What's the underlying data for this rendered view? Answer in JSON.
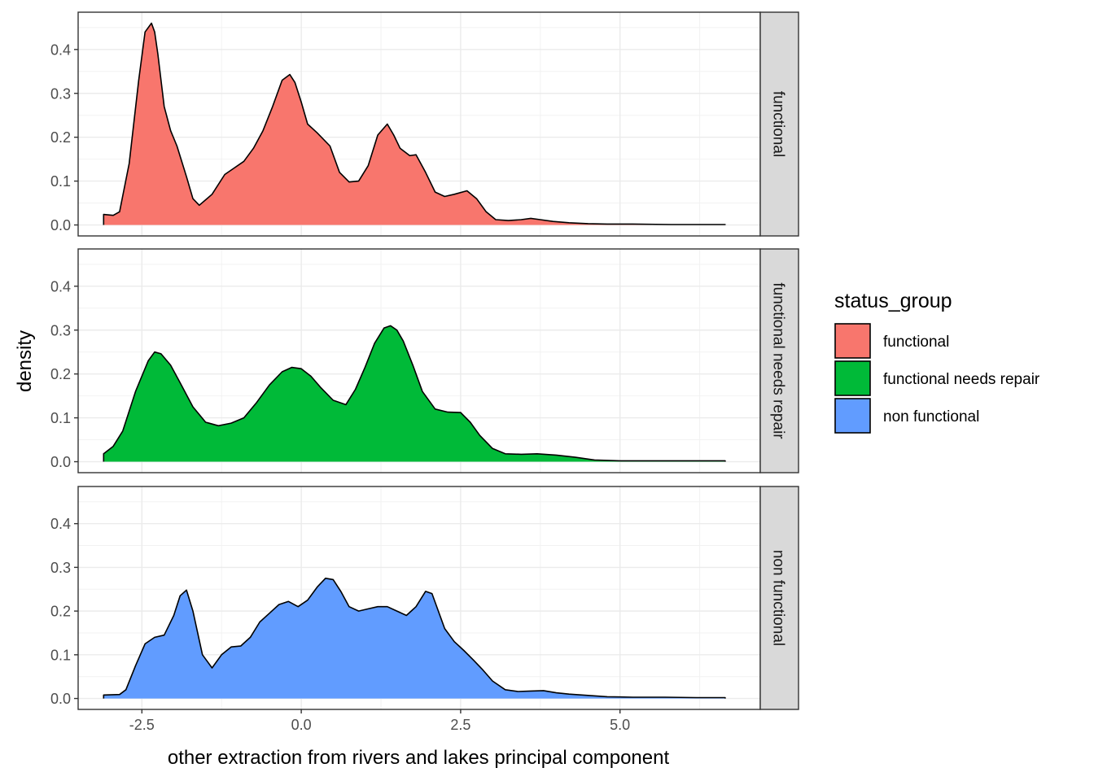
{
  "chart_data": {
    "type": "area",
    "facet_by": "status_group",
    "xlabel": "other extraction from rivers and lakes principal component",
    "ylabel": "density",
    "xlim": [
      -3.5,
      7.2
    ],
    "ylim": [
      -0.025,
      0.485
    ],
    "x_ticks": [
      -2.5,
      0.0,
      2.5,
      5.0
    ],
    "x_tick_labels": [
      "-2.5",
      "0.0",
      "2.5",
      "5.0"
    ],
    "y_ticks": [
      0.0,
      0.1,
      0.2,
      0.3,
      0.4
    ],
    "y_tick_labels": [
      "0.0",
      "0.1",
      "0.2",
      "0.3",
      "0.4"
    ],
    "grid": true,
    "legend": {
      "title": "status_group",
      "position": "right",
      "entries": [
        "functional",
        "functional needs repair",
        "non functional"
      ]
    },
    "series": [
      {
        "name": "functional",
        "color": "#F8766D",
        "x": [
          -3.1,
          -2.95,
          -2.85,
          -2.7,
          -2.55,
          -2.45,
          -2.35,
          -2.3,
          -2.25,
          -2.15,
          -2.05,
          -1.95,
          -1.8,
          -1.7,
          -1.6,
          -1.4,
          -1.2,
          -1.05,
          -0.9,
          -0.75,
          -0.6,
          -0.45,
          -0.3,
          -0.18,
          -0.1,
          0.0,
          0.1,
          0.25,
          0.45,
          0.6,
          0.75,
          0.9,
          1.05,
          1.2,
          1.35,
          1.45,
          1.55,
          1.7,
          1.8,
          1.95,
          2.1,
          2.25,
          2.4,
          2.6,
          2.75,
          2.9,
          3.05,
          3.25,
          3.45,
          3.6,
          3.75,
          3.95,
          4.2,
          4.5,
          4.8,
          5.2,
          5.8,
          6.3,
          6.65
        ],
        "y": [
          0.024,
          0.022,
          0.03,
          0.14,
          0.33,
          0.44,
          0.46,
          0.44,
          0.39,
          0.27,
          0.215,
          0.18,
          0.11,
          0.06,
          0.045,
          0.07,
          0.115,
          0.13,
          0.145,
          0.175,
          0.215,
          0.27,
          0.33,
          0.343,
          0.325,
          0.28,
          0.23,
          0.21,
          0.18,
          0.12,
          0.098,
          0.1,
          0.135,
          0.205,
          0.23,
          0.205,
          0.175,
          0.158,
          0.16,
          0.12,
          0.075,
          0.065,
          0.07,
          0.078,
          0.06,
          0.03,
          0.012,
          0.01,
          0.012,
          0.015,
          0.012,
          0.008,
          0.005,
          0.003,
          0.002,
          0.002,
          0.001,
          0.001,
          0.001
        ]
      },
      {
        "name": "functional needs repair",
        "color": "#00BA38",
        "x": [
          -3.1,
          -2.95,
          -2.8,
          -2.6,
          -2.4,
          -2.3,
          -2.2,
          -2.05,
          -1.9,
          -1.7,
          -1.5,
          -1.3,
          -1.1,
          -0.9,
          -0.7,
          -0.5,
          -0.3,
          -0.15,
          0.0,
          0.15,
          0.3,
          0.5,
          0.7,
          0.85,
          1.0,
          1.15,
          1.3,
          1.4,
          1.5,
          1.6,
          1.75,
          1.9,
          2.1,
          2.3,
          2.5,
          2.65,
          2.8,
          3.0,
          3.2,
          3.45,
          3.7,
          4.0,
          4.3,
          4.6,
          5.0,
          5.5,
          6.0,
          6.65
        ],
        "y": [
          0.018,
          0.035,
          0.07,
          0.16,
          0.23,
          0.25,
          0.246,
          0.22,
          0.18,
          0.125,
          0.09,
          0.082,
          0.088,
          0.1,
          0.135,
          0.175,
          0.205,
          0.215,
          0.212,
          0.195,
          0.17,
          0.14,
          0.13,
          0.165,
          0.215,
          0.27,
          0.305,
          0.31,
          0.3,
          0.275,
          0.22,
          0.16,
          0.12,
          0.113,
          0.112,
          0.09,
          0.06,
          0.03,
          0.018,
          0.017,
          0.018,
          0.015,
          0.01,
          0.004,
          0.002,
          0.002,
          0.002,
          0.002
        ]
      },
      {
        "name": "non functional",
        "color": "#619CFF",
        "x": [
          -3.1,
          -2.85,
          -2.75,
          -2.6,
          -2.45,
          -2.3,
          -2.15,
          -2.0,
          -1.9,
          -1.8,
          -1.7,
          -1.55,
          -1.4,
          -1.25,
          -1.1,
          -0.95,
          -0.8,
          -0.65,
          -0.5,
          -0.35,
          -0.2,
          -0.05,
          0.1,
          0.25,
          0.38,
          0.5,
          0.62,
          0.75,
          0.9,
          1.05,
          1.2,
          1.35,
          1.5,
          1.65,
          1.8,
          1.95,
          2.05,
          2.15,
          2.25,
          2.4,
          2.55,
          2.7,
          2.85,
          3.0,
          3.2,
          3.4,
          3.6,
          3.8,
          4.0,
          4.2,
          4.5,
          4.8,
          5.2,
          5.7,
          6.2,
          6.65
        ],
        "y": [
          0.008,
          0.009,
          0.02,
          0.075,
          0.125,
          0.14,
          0.145,
          0.19,
          0.235,
          0.248,
          0.2,
          0.1,
          0.07,
          0.1,
          0.118,
          0.12,
          0.14,
          0.175,
          0.195,
          0.215,
          0.222,
          0.21,
          0.225,
          0.255,
          0.275,
          0.272,
          0.245,
          0.21,
          0.2,
          0.205,
          0.21,
          0.21,
          0.2,
          0.19,
          0.21,
          0.245,
          0.24,
          0.2,
          0.16,
          0.13,
          0.11,
          0.088,
          0.065,
          0.04,
          0.02,
          0.016,
          0.017,
          0.018,
          0.013,
          0.01,
          0.007,
          0.004,
          0.003,
          0.003,
          0.002,
          0.002
        ]
      }
    ]
  }
}
